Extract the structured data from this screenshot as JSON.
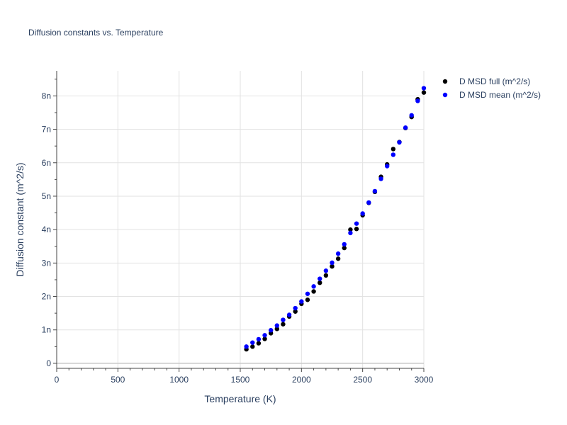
{
  "chart_data": {
    "type": "scatter",
    "title": "Diffusion constants vs. Temperature",
    "xlabel": "Temperature (K)",
    "ylabel": "Diffusion constant (m^2/s)",
    "xlim": [
      0,
      3000
    ],
    "ylim": [
      -0.15,
      8.75
    ],
    "x_ticks": [
      0,
      500,
      1000,
      1500,
      2000,
      2500,
      3000
    ],
    "x_tick_labels": [
      "0",
      "500",
      "1000",
      "1500",
      "2000",
      "2500",
      "3000"
    ],
    "y_ticks": [
      0,
      1,
      2,
      3,
      4,
      5,
      6,
      7,
      8
    ],
    "y_tick_labels": [
      "0",
      "1n",
      "2n",
      "3n",
      "4n",
      "5n",
      "6n",
      "7n",
      "8n"
    ],
    "grid": true,
    "legend_position": "top-right-outside",
    "series": [
      {
        "name": "D MSD full (m^2/s)",
        "color": "#000000",
        "x": [
          1550,
          1600,
          1650,
          1700,
          1750,
          1800,
          1850,
          1900,
          1950,
          2000,
          2050,
          2100,
          2150,
          2200,
          2250,
          2300,
          2350,
          2400,
          2450,
          2500,
          2550,
          2600,
          2650,
          2700,
          2750,
          2800,
          2850,
          2900,
          2950,
          3000
        ],
        "y": [
          0.42,
          0.5,
          0.6,
          0.73,
          0.9,
          1.03,
          1.17,
          1.4,
          1.55,
          1.78,
          1.9,
          2.15,
          2.41,
          2.63,
          2.9,
          3.13,
          3.45,
          4.0,
          4.02,
          4.43,
          4.8,
          5.13,
          5.58,
          5.95,
          6.41,
          6.62,
          7.04,
          7.37,
          7.9,
          8.1
        ]
      },
      {
        "name": "D MSD mean (m^2/s)",
        "color": "#0000ff",
        "x": [
          1550,
          1600,
          1650,
          1700,
          1750,
          1800,
          1850,
          1900,
          1950,
          2000,
          2050,
          2100,
          2150,
          2200,
          2250,
          2300,
          2350,
          2400,
          2450,
          2500,
          2550,
          2600,
          2650,
          2700,
          2750,
          2800,
          2850,
          2900,
          2950,
          3000
        ],
        "y": [
          0.5,
          0.62,
          0.72,
          0.84,
          0.99,
          1.13,
          1.3,
          1.45,
          1.65,
          1.85,
          2.08,
          2.3,
          2.53,
          2.77,
          3.01,
          3.28,
          3.56,
          3.9,
          4.18,
          4.48,
          4.81,
          5.15,
          5.52,
          5.9,
          6.24,
          6.61,
          7.05,
          7.42,
          7.85,
          8.23
        ]
      }
    ]
  }
}
